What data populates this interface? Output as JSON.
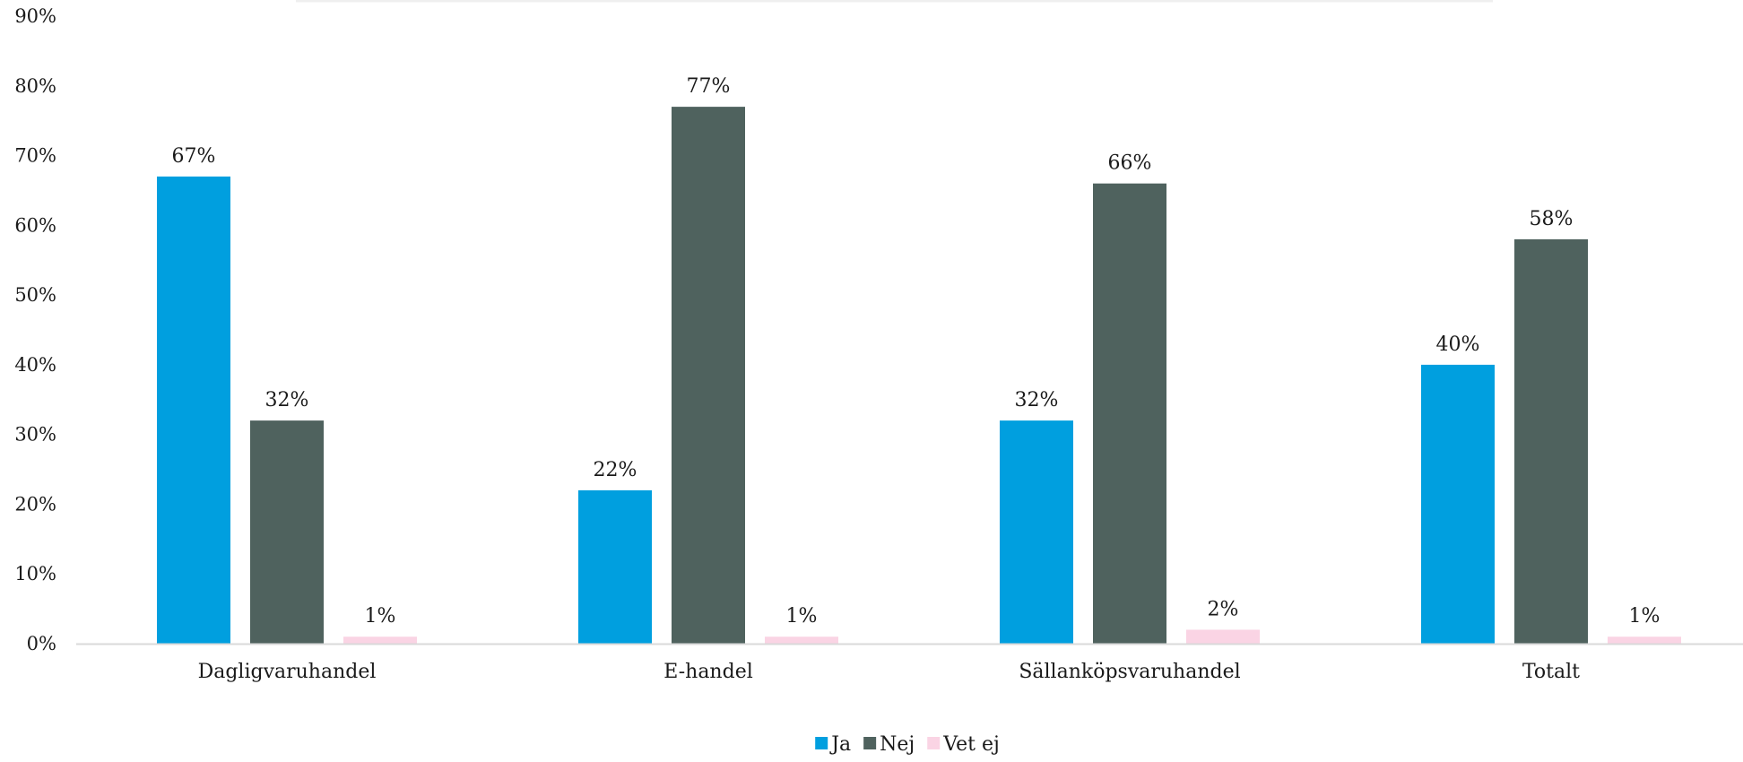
{
  "chart_data": {
    "type": "bar",
    "categories": [
      "Dagligvaruhandel",
      "E-handel",
      "Sällanköpsvaruhandel",
      "Totalt"
    ],
    "series": [
      {
        "name": "Ja",
        "values": [
          67,
          22,
          32,
          40
        ],
        "labels": [
          "67%",
          "22%",
          "32%",
          "40%"
        ],
        "color": "#009fdf"
      },
      {
        "name": "Nej",
        "values": [
          32,
          77,
          66,
          58
        ],
        "labels": [
          "32%",
          "77%",
          "66%",
          "58%"
        ],
        "color": "#4f625e"
      },
      {
        "name": "Vet ej",
        "values": [
          1,
          1,
          2,
          1
        ],
        "labels": [
          "1%",
          "1%",
          "2%",
          "1%"
        ],
        "color": "#fad4e4"
      }
    ],
    "yticks": [
      "0%",
      "10%",
      "20%",
      "30%",
      "40%",
      "50%",
      "60%",
      "70%",
      "80%",
      "90%"
    ],
    "ylim": [
      0,
      90
    ],
    "grid": false,
    "legend": "bottom",
    "axis_color": "#d9d9d9"
  }
}
